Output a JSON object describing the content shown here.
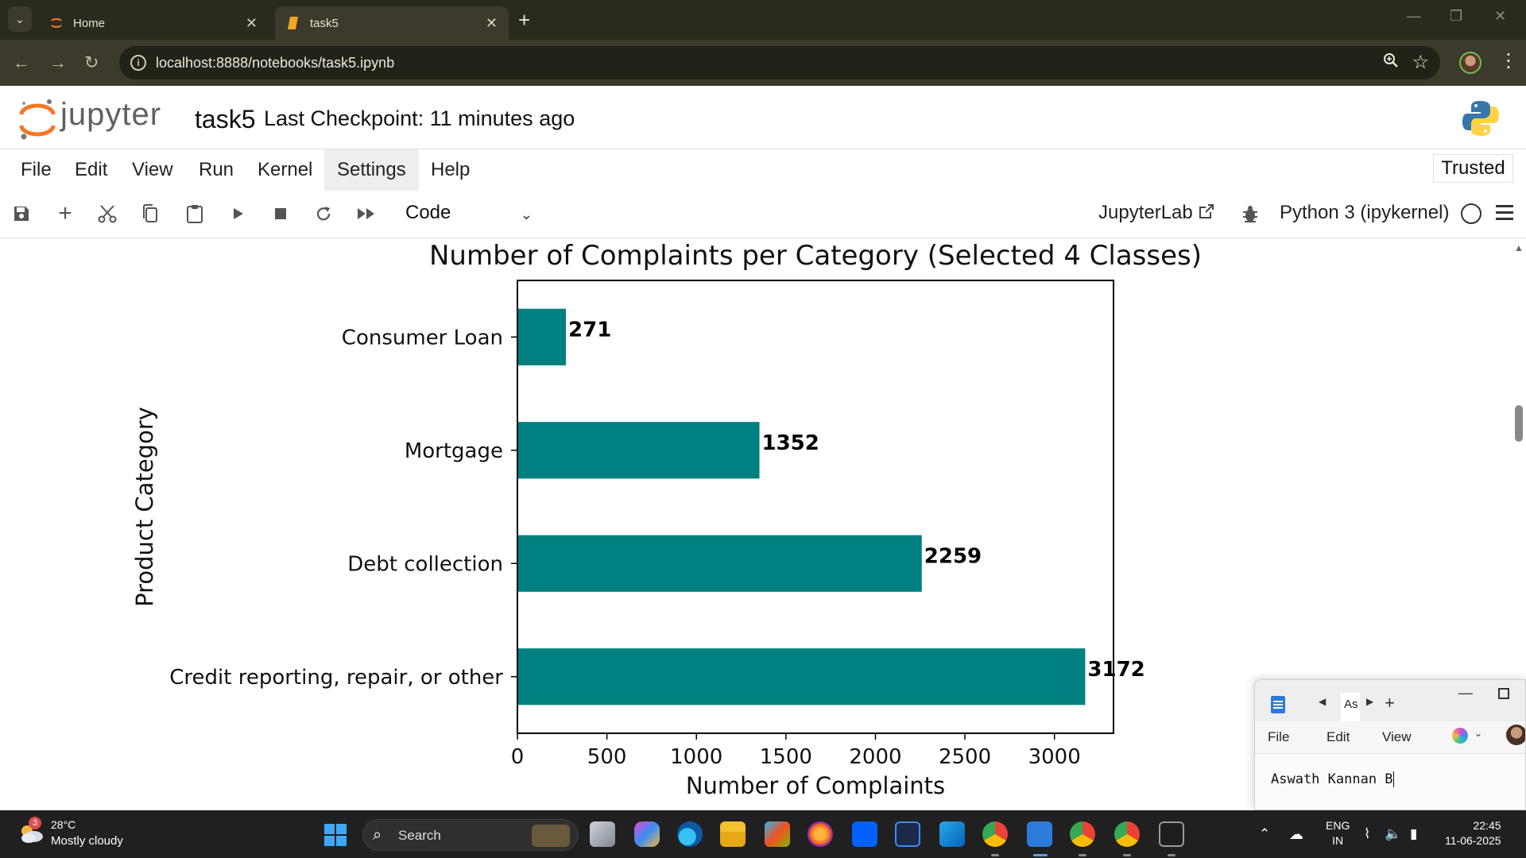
{
  "browser": {
    "tabs": [
      {
        "title": "Home",
        "icon": "jupyter-icon"
      },
      {
        "title": "task5",
        "icon": "notebook-icon",
        "active": true
      }
    ],
    "url": "localhost:8888/notebooks/task5.ipynb"
  },
  "jupyter": {
    "logo_text": "jupyter",
    "notebook_name": "task5",
    "checkpoint": "Last Checkpoint: 11 minutes ago",
    "menu": [
      "File",
      "Edit",
      "View",
      "Run",
      "Kernel",
      "Settings",
      "Help"
    ],
    "trusted": "Trusted",
    "cell_type": "Code",
    "jupyterlab_link": "JupyterLab",
    "kernel": "Python 3 (ipykernel)"
  },
  "chart_data": {
    "type": "bar",
    "orientation": "horizontal",
    "title": "Number of Complaints per Category (Selected 4 Classes)",
    "xlabel": "Number of Complaints",
    "ylabel": "Product Category",
    "categories": [
      "Consumer Loan",
      "Mortgage",
      "Debt collection",
      "Credit reporting, repair, or other"
    ],
    "values": [
      271,
      1352,
      2259,
      3172
    ],
    "data_labels": [
      "271",
      "1352",
      "2259",
      "3172"
    ],
    "xticks": [
      "0",
      "500",
      "1000",
      "1500",
      "2000",
      "2500",
      "3000"
    ],
    "xlim": [
      0,
      3330
    ],
    "bar_color": "#008080"
  },
  "notepad": {
    "tab_label": "As",
    "menu": [
      "File",
      "Edit",
      "View"
    ],
    "text": "Aswath Kannan B"
  },
  "taskbar": {
    "weather_badge": "3",
    "temperature": "28°C",
    "condition": "Mostly cloudy",
    "search": "Search",
    "lang_top": "ENG",
    "lang_bottom": "IN",
    "time": "22:45",
    "date": "11-06-2025"
  }
}
